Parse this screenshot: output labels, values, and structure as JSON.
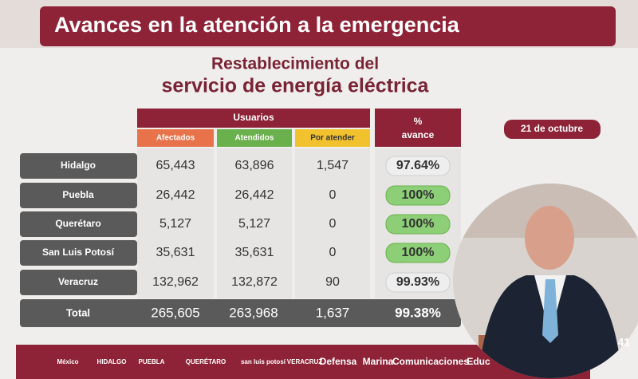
{
  "header": {
    "title": "Avances en la atención a la emergencia"
  },
  "subtitle": {
    "line1": "Restablecimiento del",
    "line2": "servicio de energía eléctrica"
  },
  "date": "21 de octubre",
  "table": {
    "group_header": "Usuarios",
    "columns": [
      "Afectados",
      "Atendidos",
      "Por atender"
    ],
    "percent_header": [
      "%",
      "avance"
    ],
    "rows": [
      [
        "Hidalgo",
        "65,443",
        "63,896",
        "1,547",
        "97.64%"
      ],
      [
        "Puebla",
        "26,442",
        "26,442",
        "0",
        "100%"
      ],
      [
        "Querétaro",
        "5,127",
        "5,127",
        "0",
        "100%"
      ],
      [
        "San Luis Potosí",
        "35,631",
        "35,631",
        "0",
        "100%"
      ],
      [
        "Veracruz",
        "132,962",
        "132,872",
        "90",
        "99.93%"
      ]
    ],
    "total": [
      "Total",
      "265,605",
      "263,968",
      "1,637",
      "99.38%"
    ]
  },
  "footer": [
    "México",
    "HIDALGO",
    "PUEBLA",
    "QUERÉTARO",
    "san luis potosí",
    "VERACRUZ",
    "Defensa",
    "Marina",
    "Comunicaciones",
    "Educ"
  ],
  "overlay": {
    "page_number": "41"
  }
}
